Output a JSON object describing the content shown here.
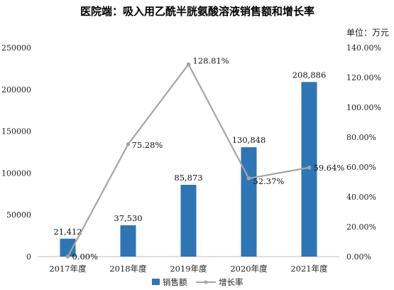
{
  "chart_data": {
    "type": "bar",
    "title": "医院端：吸入用乙酰半胱氨酸溶液销售额和增长率",
    "ylabel": "单位：万元",
    "categories": [
      "2017年度",
      "2018年度",
      "2019年度",
      "2020年度",
      "2021年度"
    ],
    "ylim": [
      0,
      250000
    ],
    "y_ticks": [
      "0",
      "50000",
      "100000",
      "150000",
      "200000",
      "250000"
    ],
    "y2lim": [
      0,
      140
    ],
    "y2_ticks": [
      "0.00%",
      "20.00%",
      "40.00%",
      "60.00%",
      "80.00%",
      "100.00%",
      "120.00%",
      "140.00%"
    ],
    "series": [
      {
        "name": "销售额",
        "type": "bar",
        "values": [
          21412,
          37530,
          85873,
          130848,
          208886
        ],
        "labels": [
          "21,412",
          "37,530",
          "85,873",
          "130,848",
          "208,886"
        ],
        "color": "#2E75B6"
      },
      {
        "name": "增长率",
        "type": "line",
        "axis": "secondary",
        "values": [
          0.0,
          75.28,
          128.81,
          52.37,
          59.64
        ],
        "labels": [
          "0.00%",
          "75.28%",
          "128.81%",
          "52.37%",
          "59.64%"
        ],
        "color": "#A5A5A5"
      }
    ],
    "grid": false,
    "legend": "bottom"
  }
}
